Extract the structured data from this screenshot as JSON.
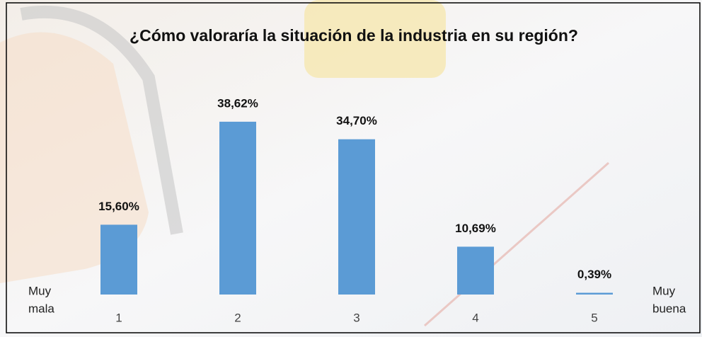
{
  "chart_data": {
    "type": "bar",
    "title": "¿Cómo valoraría la situación de la industria en su región?",
    "categories": [
      "1",
      "2",
      "3",
      "4",
      "5"
    ],
    "values": [
      15.6,
      38.62,
      34.7,
      10.69,
      0.39
    ],
    "value_labels": [
      "15,60%",
      "38,62%",
      "34,70%",
      "10,69%",
      "0,39%"
    ],
    "color": "#5b9bd5",
    "annotations": {
      "left": [
        "Muy",
        "mala"
      ],
      "right": [
        "Muy",
        "buena"
      ]
    }
  }
}
